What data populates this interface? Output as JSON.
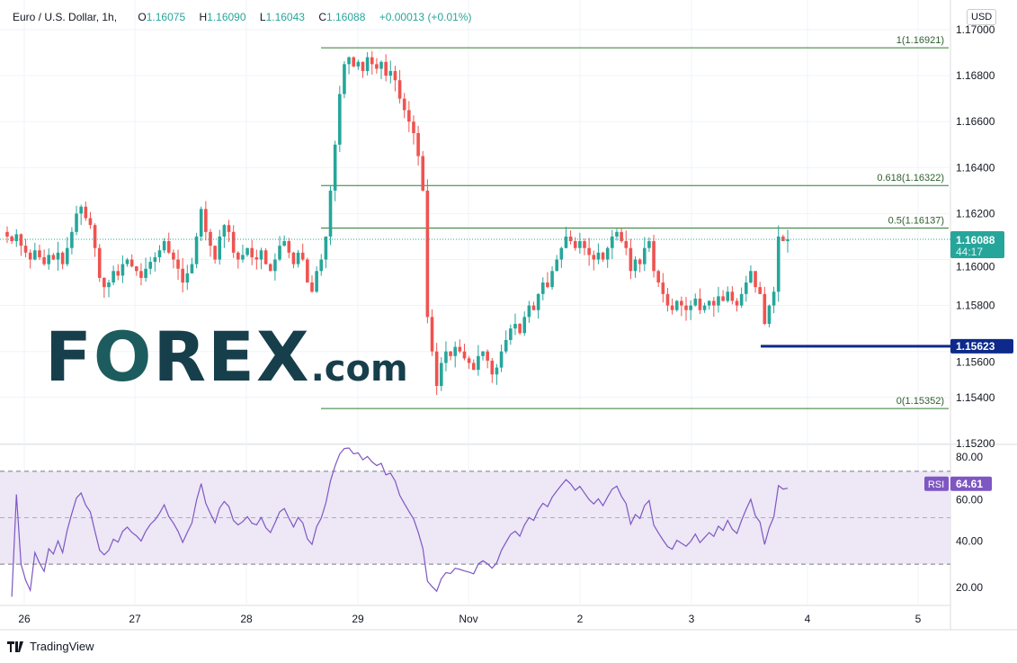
{
  "header": {
    "symbol": "Euro / U.S. Dollar, 1h,",
    "open": "1.16075",
    "high": "1.16090",
    "low": "1.16043",
    "close": "1.16088",
    "change": "+0.00013 (+0.01%)",
    "o_label": "O",
    "h_label": "H",
    "l_label": "L",
    "c_label": "C"
  },
  "currency_button": "USD",
  "watermark": "FOREX.com",
  "footer": {
    "brand": "TradingView"
  },
  "colors": {
    "up": "#26a69a",
    "down": "#ef5350",
    "fib": "#2e7d32",
    "support": "#0d2a8a",
    "rsi": "#7e57c2",
    "rsi_band": "#ede7f6"
  },
  "chart_data": [
    {
      "type": "candlestick",
      "interval": "1h",
      "price_axis": {
        "range": [
          1.152,
          1.17
        ],
        "ticks": [
          "1.17000",
          "1.16800",
          "1.16600",
          "1.16400",
          "1.16200",
          "1.16000",
          "1.15800",
          "1.15600",
          "1.15400",
          "1.15200"
        ]
      },
      "x_ticks": [
        "26",
        "27",
        "28",
        "29",
        "Nov",
        "2",
        "3",
        "4",
        "5"
      ],
      "closes": [
        1.161,
        1.1608,
        1.1611,
        1.1606,
        1.1603,
        1.16,
        1.1604,
        1.1601,
        1.1598,
        1.1602,
        1.16,
        1.1603,
        1.1598,
        1.1605,
        1.1612,
        1.162,
        1.1623,
        1.1618,
        1.1615,
        1.1605,
        1.1592,
        1.1588,
        1.159,
        1.1595,
        1.1593,
        1.1598,
        1.16,
        1.1597,
        1.1595,
        1.1592,
        1.1596,
        1.1599,
        1.1601,
        1.1604,
        1.1608,
        1.1603,
        1.16,
        1.1596,
        1.159,
        1.1594,
        1.1598,
        1.161,
        1.1622,
        1.1612,
        1.1606,
        1.16,
        1.161,
        1.1615,
        1.1612,
        1.1603,
        1.16,
        1.1602,
        1.1605,
        1.1601,
        1.16,
        1.1604,
        1.1598,
        1.1595,
        1.16,
        1.1606,
        1.1608,
        1.1603,
        1.1598,
        1.1603,
        1.16,
        1.159,
        1.1586,
        1.1595,
        1.16,
        1.161,
        1.163,
        1.165,
        1.1672,
        1.1685,
        1.1688,
        1.1684,
        1.1686,
        1.1682,
        1.1688,
        1.1685,
        1.1683,
        1.1686,
        1.168,
        1.1682,
        1.1678,
        1.167,
        1.1665,
        1.166,
        1.1655,
        1.1645,
        1.163,
        1.1575,
        1.156,
        1.1545,
        1.1555,
        1.156,
        1.1558,
        1.1562,
        1.156,
        1.1557,
        1.1555,
        1.1552,
        1.1558,
        1.156,
        1.1556,
        1.155,
        1.1553,
        1.156,
        1.1565,
        1.157,
        1.1572,
        1.1568,
        1.1575,
        1.158,
        1.1578,
        1.1585,
        1.159,
        1.1588,
        1.1595,
        1.16,
        1.1605,
        1.161,
        1.1608,
        1.1605,
        1.1608,
        1.1605,
        1.1602,
        1.16,
        1.1603,
        1.16,
        1.1605,
        1.161,
        1.1612,
        1.1608,
        1.1605,
        1.1595,
        1.16,
        1.1598,
        1.1605,
        1.1608,
        1.1595,
        1.159,
        1.1585,
        1.158,
        1.1578,
        1.1582,
        1.158,
        1.1578,
        1.158,
        1.1583,
        1.1578,
        1.158,
        1.1582,
        1.158,
        1.1584,
        1.1582,
        1.1586,
        1.1582,
        1.158,
        1.1585,
        1.159,
        1.1595,
        1.1588,
        1.1585,
        1.1572,
        1.158,
        1.1586,
        1.161,
        1.1608,
        1.16088
      ],
      "last_price": {
        "value": "1.16088",
        "countdown": "44:17"
      },
      "fib_levels": [
        {
          "ratio": 1,
          "label": "1(1.16921)",
          "price": 1.16921
        },
        {
          "ratio": 0.618,
          "label": "0.618(1.16322)",
          "price": 1.16322
        },
        {
          "ratio": 0.5,
          "label": "0.5(1.16137)",
          "price": 1.16137
        },
        {
          "ratio": 0,
          "label": "0(1.15352)",
          "price": 1.15352
        }
      ],
      "support_line": {
        "price": 1.15623,
        "label": "1.15623"
      }
    },
    {
      "type": "line",
      "indicator": "RSI",
      "label": "RSI",
      "last_value": "64.61",
      "axis": {
        "range": [
          15,
          82
        ],
        "ticks": [
          "80.00",
          "60.00",
          "40.00",
          "20.00"
        ]
      },
      "band": [
        30,
        70
      ],
      "midline": 50
    }
  ]
}
